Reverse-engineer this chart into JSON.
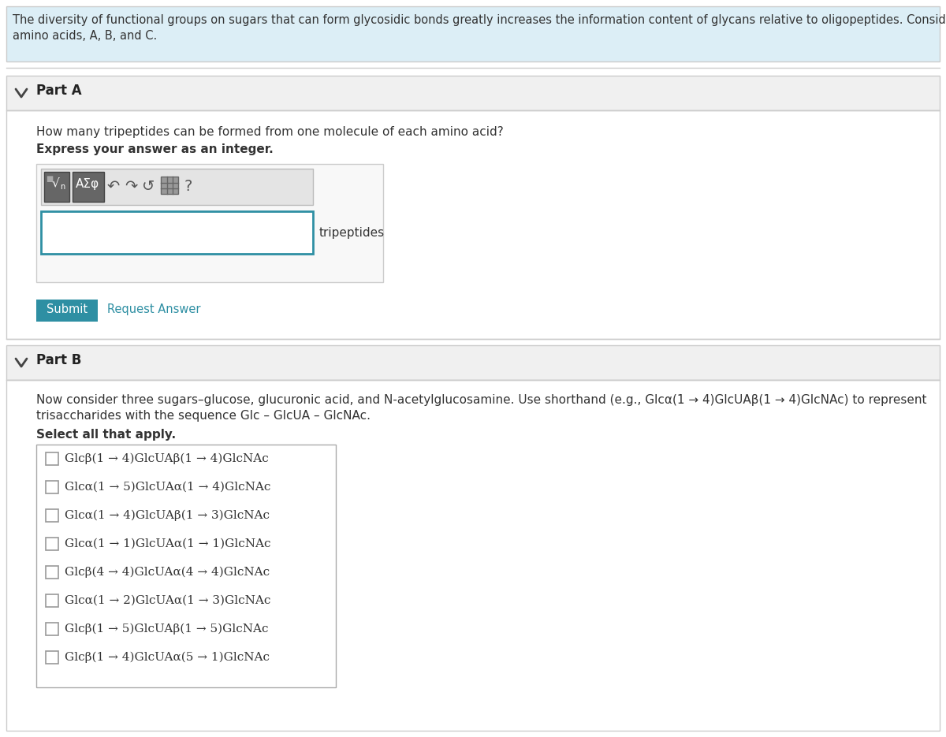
{
  "bg_header_color": "#dceef6",
  "bg_white": "#ffffff",
  "bg_light_gray": "#f0f0f0",
  "border_color": "#cccccc",
  "border_dark": "#aaaaaa",
  "teal_color": "#2e8fa3",
  "submit_bg": "#2e8fa3",
  "link_color": "#2e8fa3",
  "text_color": "#333333",
  "header_text_line1": "The diversity of functional groups on sugars that can form glycosidic bonds greatly increases the information content of glycans relative to oligopeptides. Consider three",
  "header_text_line2": "amino acids, A, B, and C.",
  "part_a_label": "Part A",
  "part_b_label": "Part B",
  "question_a": "How many tripeptides can be formed from one molecule of each amino acid?",
  "bold_a": "Express your answer as an integer.",
  "tripeptides_label": "tripeptides",
  "submit_text": "Submit",
  "request_text": "Request Answer",
  "question_b1": "Now consider three sugars–glucose, glucuronic acid, and N-acetylglucosamine. Use shorthand (e.g., Glcα(1 → 4)GlcUAβ(1 → 4)GlcNAc) to represent",
  "question_b2": "trisaccharides with the sequence Glc – GlcUA – GlcNAc.",
  "bold_b": "Select all that apply.",
  "choices": [
    "Glcβ(1 → 4)GlcUAβ(1 → 4)GlcNAc",
    "Glcα(1 → 5)GlcUAα(1 → 4)GlcNAc",
    "Glcα(1 → 4)GlcUAβ(1 → 3)GlcNAc",
    "Glcα(1 → 1)GlcUAα(1 → 1)GlcNAc",
    "Glcβ(4 → 4)GlcUAα(4 → 4)GlcNAc",
    "Glcα(1 → 2)GlcUAα(1 → 3)GlcNAc",
    "Glcβ(1 → 5)GlcUAβ(1 → 5)GlcNAc",
    "Glcβ(1 → 4)GlcUAα(5 → 1)GlcNAc"
  ],
  "fig_w": 12.0,
  "fig_h": 9.35,
  "dpi": 100
}
